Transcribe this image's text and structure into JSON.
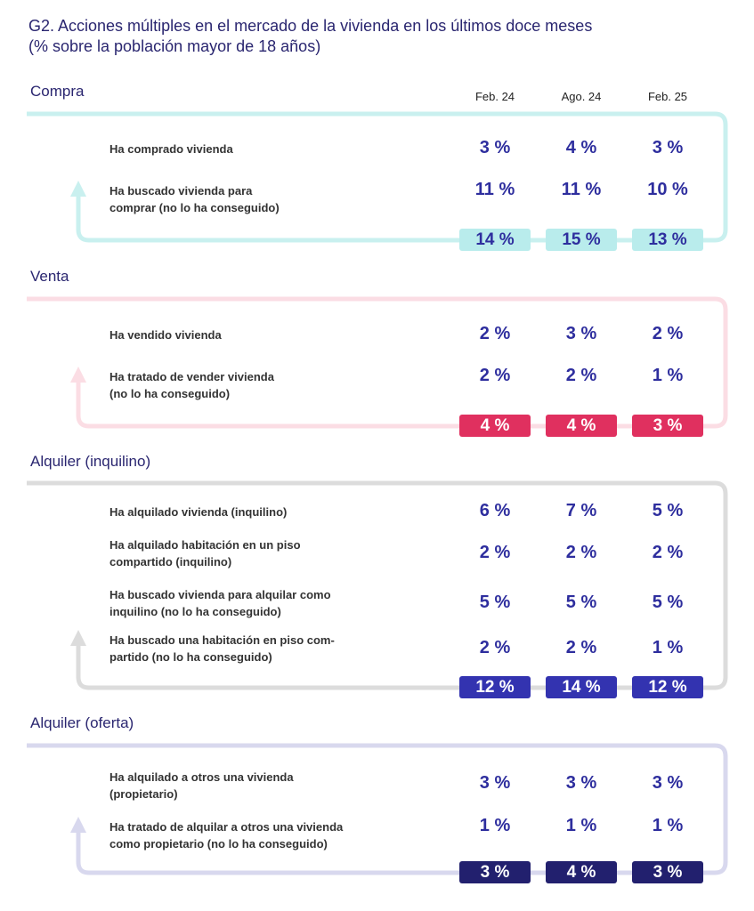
{
  "title_line1": "G2. Acciones múltiples en el mercado de la vivienda en los últimos doce meses",
  "title_line2": "(% sobre la población mayor de 18 años)",
  "chart_data": {
    "type": "table",
    "title": "G2. Acciones múltiples en el mercado de la vivienda en los últimos doce meses (% sobre la población mayor de 18 años)",
    "columns": [
      "Feb. 24",
      "Ago. 24",
      "Feb. 25"
    ],
    "sections": [
      {
        "name": "Compra",
        "color": "#c9f0ef",
        "total_bg": "#b9ecec",
        "total_fg": "#2e2e9e",
        "rows": [
          {
            "label": "Ha comprado vivienda",
            "values": [
              "3 %",
              "4 %",
              "3 %"
            ]
          },
          {
            "label": "Ha buscado vivienda para comprar (no lo ha conseguido)",
            "label_lines": [
              "Ha buscado vivienda para",
              "comprar (no lo ha conseguido)"
            ],
            "values": [
              "11 %",
              "11 %",
              "10 %"
            ]
          }
        ],
        "totals": [
          "14 %",
          "15 %",
          "13 %"
        ]
      },
      {
        "name": "Venta",
        "color": "#fbdde4",
        "total_bg": "#e0305f",
        "total_fg": "#ffffff",
        "rows": [
          {
            "label": "Ha vendido vivienda",
            "values": [
              "2 %",
              "3 %",
              "2 %"
            ]
          },
          {
            "label": "Ha tratado de vender vivienda (no lo ha conseguido)",
            "label_lines": [
              "Ha tratado de vender vivienda",
              "(no lo ha conseguido)"
            ],
            "values": [
              "2 %",
              "2 %",
              "1 %"
            ]
          }
        ],
        "totals": [
          "4 %",
          "4 %",
          "3 %"
        ]
      },
      {
        "name": "Alquiler (inquilino)",
        "color": "#dcdcdc",
        "total_bg": "#3333b0",
        "total_fg": "#ffffff",
        "rows": [
          {
            "label": "Ha alquilado vivienda (inquilino)",
            "values": [
              "6 %",
              "7 %",
              "5 %"
            ]
          },
          {
            "label": "Ha alquilado habitación en un piso compartido (inquilino)",
            "label_lines": [
              "Ha alquilado habitación en un piso",
              "compartido (inquilino)"
            ],
            "values": [
              "2 %",
              "2 %",
              "2 %"
            ]
          },
          {
            "label": "Ha buscado vivienda para alquilar como inquilino (no lo ha conseguido)",
            "label_lines": [
              "Ha buscado vivienda para alquilar como",
              "inquilino (no lo ha conseguido)"
            ],
            "values": [
              "5 %",
              "5 %",
              "5 %"
            ]
          },
          {
            "label": "Ha buscado una habitación en piso compartido (no lo ha conseguido)",
            "label_lines": [
              "Ha buscado una habitación en piso com-",
              "partido (no lo ha conseguido)"
            ],
            "values": [
              "2 %",
              "2 %",
              "1 %"
            ]
          }
        ],
        "totals": [
          "12 %",
          "14 %",
          "12 %"
        ]
      },
      {
        "name": "Alquiler (oferta)",
        "color": "#d8d8ee",
        "total_bg": "#22206e",
        "total_fg": "#ffffff",
        "rows": [
          {
            "label": "Ha alquilado a otros una vivienda (propietario)",
            "label_lines": [
              "Ha alquilado a otros una vivienda",
              "(propietario)"
            ],
            "values": [
              "3 %",
              "3 %",
              "3 %"
            ]
          },
          {
            "label": "Ha tratado de alquilar a otros una vivienda como propietario (no lo ha conseguido)",
            "label_lines": [
              "Ha tratado de alquilar a otros una vivienda",
              "como propietario (no lo ha conseguido)"
            ],
            "values": [
              "1 %",
              "1 %",
              "1 %"
            ]
          }
        ],
        "totals": [
          "3 %",
          "4 %",
          "3 %"
        ]
      }
    ]
  }
}
